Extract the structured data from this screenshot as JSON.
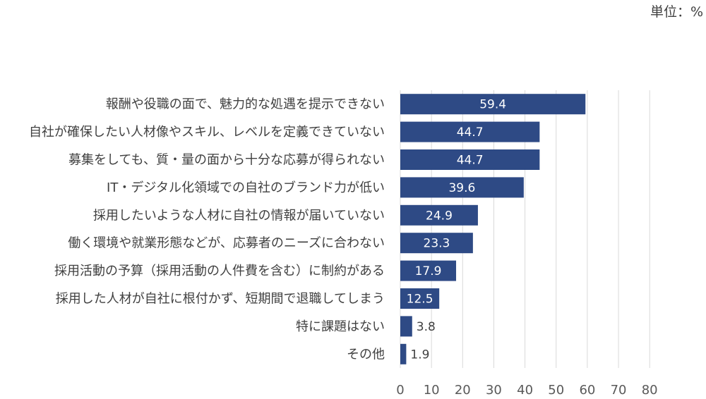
{
  "unit_label": "単位：%",
  "colors": {
    "bar": "#2e4a85",
    "grid": "#d9d9d9",
    "text": "#404040"
  },
  "chart_data": {
    "type": "bar",
    "orientation": "horizontal",
    "categories": [
      "報酬や役職の面で、魅力的な処遇を提示できない",
      "自社が確保したい人材像やスキル、レベルを定義できていない",
      "募集をしても、質・量の面から十分な応募が得られない",
      "IT・デジタル化領域での自社のブランド力が低い",
      "採用したいような人材に自社の情報が届いていない",
      "働く環境や就業形態などが、応募者のニーズに合わない",
      "採用活動の予算（採用活動の人件費を含む）に制約がある",
      "採用した人材が自社に根付かず、短期間で退職してしまう",
      "特に課題はない",
      "その他"
    ],
    "values": [
      59.4,
      44.7,
      44.7,
      39.6,
      24.9,
      23.3,
      17.9,
      12.5,
      3.8,
      1.9
    ],
    "data_labels": [
      "59.4",
      "44.7",
      "44.7",
      "39.6",
      "24.9",
      "23.3",
      "17.9",
      "12.5",
      "3.8",
      "1.9"
    ],
    "xlim": [
      0,
      80
    ],
    "xticks": [
      "0",
      "10",
      "20",
      "30",
      "40",
      "50",
      "60",
      "70",
      "80"
    ],
    "grid": true,
    "legend": "none"
  }
}
